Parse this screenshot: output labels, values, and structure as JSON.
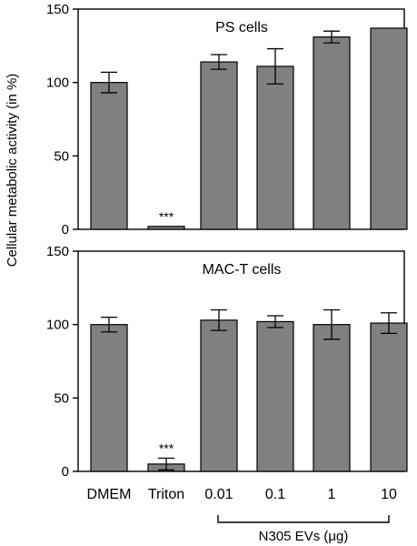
{
  "ylabel": "Cellular metabolic activity (in %)",
  "group_label": "N305 EVs (μg)",
  "colors": {
    "bar": "#808080",
    "frame": "#000000"
  },
  "chart_data": [
    {
      "type": "bar",
      "title": "PS cells",
      "categories": [
        "DMEM",
        "Triton",
        "0.01",
        "0.1",
        "1",
        "10"
      ],
      "values": [
        100,
        2,
        114,
        111,
        131,
        137
      ],
      "errors": [
        7,
        0,
        5,
        12,
        4,
        0
      ],
      "annotations": [
        "",
        "***",
        "",
        "",
        "",
        ""
      ],
      "ylim": [
        0,
        150
      ],
      "yticks": [
        0,
        50,
        100,
        150
      ],
      "xlabel": "",
      "ylabel": "Cellular metabolic activity (in %)"
    },
    {
      "type": "bar",
      "title": "MAC-T cells",
      "categories": [
        "DMEM",
        "Triton",
        "0.01",
        "0.1",
        "1",
        "10"
      ],
      "values": [
        100,
        5,
        103,
        102,
        100,
        101
      ],
      "errors": [
        5,
        4,
        7,
        4,
        10,
        7
      ],
      "annotations": [
        "",
        "***",
        "",
        "",
        "",
        ""
      ],
      "ylim": [
        0,
        150
      ],
      "yticks": [
        0,
        50,
        100,
        150
      ],
      "xlabel": "",
      "ylabel": "Cellular metabolic activity (in %)"
    }
  ]
}
